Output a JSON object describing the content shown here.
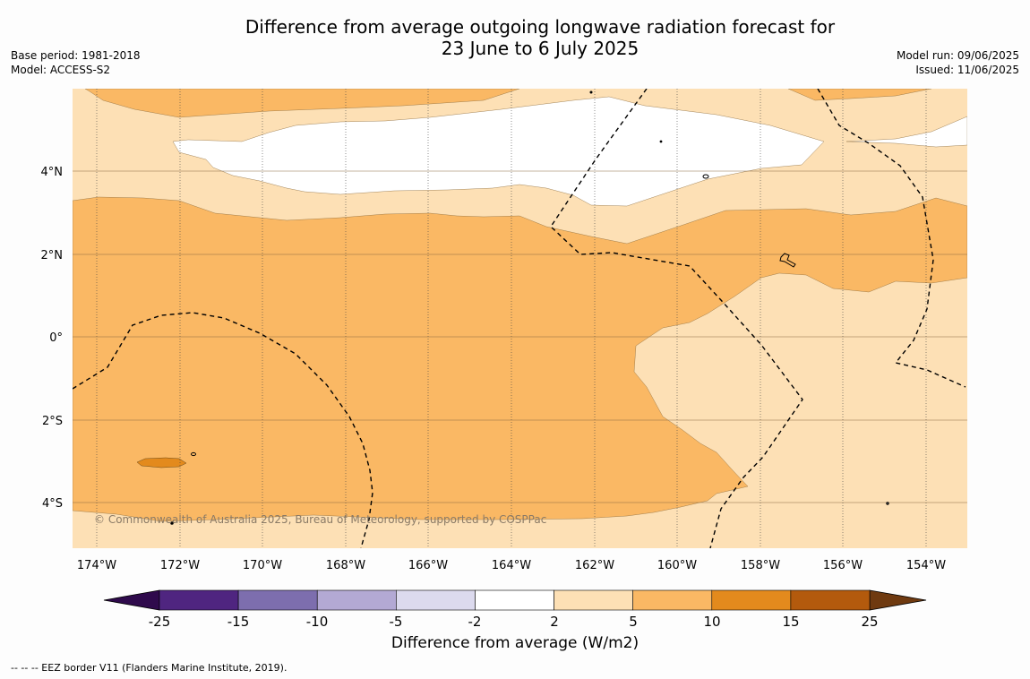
{
  "title": {
    "line1": "Difference from average outgoing longwave radiation forecast for",
    "line2": "23 June to 6 July 2025"
  },
  "meta_left": {
    "base_period": "Base period: 1981-2018",
    "model": "Model: ACCESS-S2"
  },
  "meta_right": {
    "model_run": "Model run: 09/06/2025",
    "issued": "Issued: 11/06/2025"
  },
  "map": {
    "lon_labels": [
      "174°W",
      "172°W",
      "170°W",
      "168°W",
      "166°W",
      "164°W",
      "162°W",
      "160°W",
      "158°W",
      "156°W",
      "154°W"
    ],
    "lat_labels": [
      "4°N",
      "2°N",
      "0°",
      "2°S",
      "4°S"
    ],
    "copyright": "© Commonwealth of Australia 2025, Bureau of Meteorology, supported by COSPPac"
  },
  "colorbar": {
    "ticks": [
      "-25",
      "-15",
      "-10",
      "-5",
      "-2",
      "2",
      "5",
      "10",
      "15",
      "25"
    ],
    "colors": [
      "#4f2580",
      "#7d6eae",
      "#b3a9d4",
      "#dcdaee",
      "#ffffff",
      "#fde0b5",
      "#fab864",
      "#e38a1d",
      "#b35a0d"
    ],
    "under_color": "#2f0a4c",
    "over_color": "#6f3a10",
    "title": "Difference from average (W/m2)"
  },
  "footnote": "--  --  -- EEZ border V11 (Flanders Marine Institute, 2019)."
}
